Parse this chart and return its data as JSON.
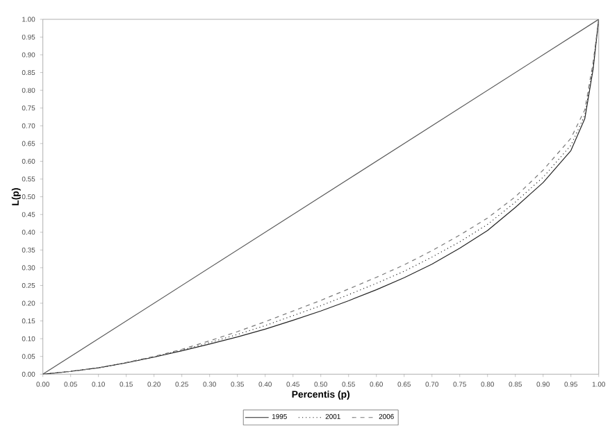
{
  "chart_data": {
    "type": "line",
    "xlabel": "Percentis (p)",
    "ylabel": "L(p)",
    "x": [
      0,
      0.05,
      0.1,
      0.15,
      0.2,
      0.25,
      0.3,
      0.35,
      0.4,
      0.45,
      0.5,
      0.55,
      0.6,
      0.65,
      0.7,
      0.75,
      0.8,
      0.85,
      0.9,
      0.95,
      0.975,
      0.99,
      1
    ],
    "series": [
      {
        "x": [
          0,
          1
        ],
        "values": [
          0,
          1
        ],
        "color": "#555555",
        "line_style": "solid"
      },
      {
        "name": "1995",
        "color": "#222222",
        "line_style": "solid",
        "values": [
          0,
          0.008,
          0.018,
          0.032,
          0.048,
          0.066,
          0.085,
          0.105,
          0.127,
          0.152,
          0.178,
          0.207,
          0.238,
          0.272,
          0.31,
          0.355,
          0.405,
          0.47,
          0.54,
          0.63,
          0.72,
          0.86,
          1
        ]
      },
      {
        "name": "2001",
        "color": "#222222",
        "line_style": "dotted",
        "values": [
          0,
          0.008,
          0.018,
          0.032,
          0.049,
          0.068,
          0.089,
          0.112,
          0.137,
          0.165,
          0.193,
          0.224,
          0.256,
          0.29,
          0.33,
          0.373,
          0.422,
          0.485,
          0.555,
          0.645,
          0.73,
          0.87,
          1
        ]
      },
      {
        "name": "2006",
        "color": "#777777",
        "line_style": "dashed",
        "values": [
          0,
          0.008,
          0.018,
          0.033,
          0.05,
          0.07,
          0.094,
          0.12,
          0.148,
          0.178,
          0.208,
          0.24,
          0.273,
          0.308,
          0.348,
          0.392,
          0.44,
          0.5,
          0.575,
          0.665,
          0.745,
          0.88,
          1
        ]
      }
    ],
    "xlim": [
      0,
      1
    ],
    "ylim": [
      0,
      1
    ],
    "xticks": [
      {
        "value": 0,
        "label": "0.00"
      },
      {
        "value": 0.05,
        "label": "0.05"
      },
      {
        "value": 0.1,
        "label": "0.10"
      },
      {
        "value": 0.15,
        "label": "0.15"
      },
      {
        "value": 0.2,
        "label": "0.20"
      },
      {
        "value": 0.25,
        "label": "0.25"
      },
      {
        "value": 0.3,
        "label": "0.30"
      },
      {
        "value": 0.35,
        "label": "0.35"
      },
      {
        "value": 0.4,
        "label": "0.40"
      },
      {
        "value": 0.45,
        "label": "0.45"
      },
      {
        "value": 0.5,
        "label": "0.50"
      },
      {
        "value": 0.55,
        "label": "0.55"
      },
      {
        "value": 0.6,
        "label": "0.60"
      },
      {
        "value": 0.65,
        "label": "0.65"
      },
      {
        "value": 0.7,
        "label": "0.70"
      },
      {
        "value": 0.75,
        "label": "0.75"
      },
      {
        "value": 0.8,
        "label": "0.80"
      },
      {
        "value": 0.85,
        "label": "0.85"
      },
      {
        "value": 0.9,
        "label": "0.90"
      },
      {
        "value": 0.95,
        "label": "0.95"
      },
      {
        "value": 1,
        "label": "1.00"
      }
    ],
    "yticks": [
      {
        "value": 0,
        "label": "0.00"
      },
      {
        "value": 0.05,
        "label": "0.05"
      },
      {
        "value": 0.1,
        "label": "0.10"
      },
      {
        "value": 0.15,
        "label": "0.15"
      },
      {
        "value": 0.2,
        "label": "0.20"
      },
      {
        "value": 0.25,
        "label": "0.25"
      },
      {
        "value": 0.3,
        "label": "0.30"
      },
      {
        "value": 0.35,
        "label": "0.35"
      },
      {
        "value": 0.4,
        "label": "0.40"
      },
      {
        "value": 0.45,
        "label": "0.45"
      },
      {
        "value": 0.5,
        "label": "0.50"
      },
      {
        "value": 0.55,
        "label": "0.55"
      },
      {
        "value": 0.6,
        "label": "0.60"
      },
      {
        "value": 0.65,
        "label": "0.65"
      },
      {
        "value": 0.7,
        "label": "0.70"
      },
      {
        "value": 0.75,
        "label": "0.75"
      },
      {
        "value": 0.8,
        "label": "0.80"
      },
      {
        "value": 0.85,
        "label": "0.85"
      },
      {
        "value": 0.9,
        "label": "0.90"
      },
      {
        "value": 0.95,
        "label": "0.95"
      },
      {
        "value": 1,
        "label": "1.00"
      }
    ],
    "grid": false,
    "legend": "bottom",
    "marker": "none"
  }
}
